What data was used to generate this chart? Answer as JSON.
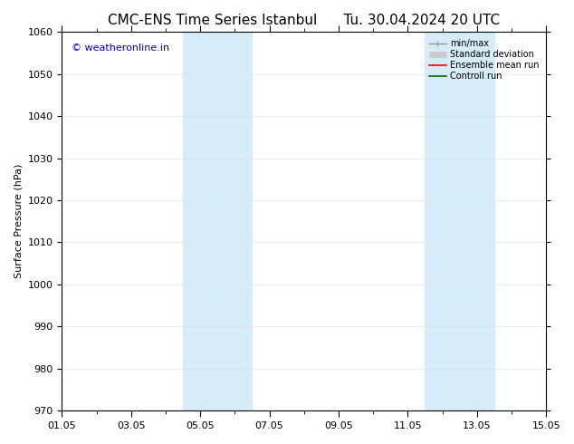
{
  "title": "CMC-ENS Time Series Istanbul      Tu. 30.04.2024 20 UTC",
  "ylabel": "Surface Pressure (hPa)",
  "ylim": [
    970,
    1060
  ],
  "yticks": [
    970,
    980,
    990,
    1000,
    1010,
    1020,
    1030,
    1040,
    1050,
    1060
  ],
  "xlim": [
    0,
    14
  ],
  "xtick_labels": [
    "01.05",
    "03.05",
    "05.05",
    "07.05",
    "09.05",
    "11.05",
    "13.05",
    "15.05"
  ],
  "xtick_positions": [
    0,
    2,
    4,
    6,
    8,
    10,
    12,
    14
  ],
  "shaded_regions": [
    {
      "x_start": 3.5,
      "x_end": 5.5,
      "color": "#d6ecf8"
    },
    {
      "x_start": 10.5,
      "x_end": 12.5,
      "color": "#d6ecf8"
    }
  ],
  "watermark_text": "© weatheronline.in",
  "watermark_color": "#0000cc",
  "watermark_fontsize": 8,
  "background_color": "#ffffff",
  "plot_bg_color": "#ffffff",
  "title_fontsize": 11,
  "axis_label_fontsize": 8,
  "tick_fontsize": 8,
  "legend_fontsize": 7,
  "legend_items": [
    {
      "label": "min/max",
      "color": "#999999",
      "lw": 1.0
    },
    {
      "label": "Standard deviation",
      "color": "#cccccc",
      "lw": 5
    },
    {
      "label": "Ensemble mean run",
      "color": "#ff0000",
      "lw": 1.2
    },
    {
      "label": "Controll run",
      "color": "#006600",
      "lw": 1.2
    }
  ]
}
